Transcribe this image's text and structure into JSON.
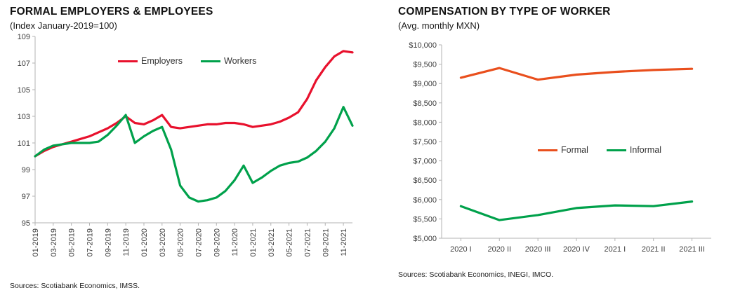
{
  "chart_data": [
    {
      "type": "line",
      "title": "FORMAL EMPLOYERS & EMPLOYEES",
      "subtitle": "(Index January-2019=100)",
      "source": "Sources: Scotiabank Economics, IMSS.",
      "ylim": [
        95,
        109
      ],
      "ytick_step": 2,
      "ytick_format": "plain",
      "grid": false,
      "legend_position": "top-center-inside",
      "x_tick_every": 2,
      "x": [
        "01-2019",
        "02-2019",
        "03-2019",
        "04-2019",
        "05-2019",
        "06-2019",
        "07-2019",
        "08-2019",
        "09-2019",
        "10-2019",
        "11-2019",
        "12-2019",
        "01-2020",
        "02-2020",
        "03-2020",
        "04-2020",
        "05-2020",
        "06-2020",
        "07-2020",
        "08-2020",
        "09-2020",
        "10-2020",
        "11-2020",
        "12-2020",
        "01-2021",
        "02-2021",
        "03-2021",
        "04-2021",
        "05-2021",
        "06-2021",
        "07-2021",
        "08-2021",
        "09-2021",
        "10-2021",
        "11-2021",
        "12-2021"
      ],
      "series": [
        {
          "name": "Employers",
          "color": "#e8112d",
          "values": [
            100.0,
            100.4,
            100.7,
            100.9,
            101.1,
            101.3,
            101.5,
            101.8,
            102.1,
            102.5,
            103.0,
            102.5,
            102.4,
            102.7,
            103.1,
            102.2,
            102.1,
            102.2,
            102.3,
            102.4,
            102.4,
            102.5,
            102.5,
            102.4,
            102.2,
            102.3,
            102.4,
            102.6,
            102.9,
            103.3,
            104.3,
            105.7,
            106.7,
            107.5,
            107.9,
            107.8
          ]
        },
        {
          "name": "Workers",
          "color": "#00a14b",
          "values": [
            100.0,
            100.5,
            100.8,
            100.9,
            101.0,
            101.0,
            101.0,
            101.1,
            101.6,
            102.3,
            103.1,
            101.0,
            101.5,
            101.9,
            102.2,
            100.5,
            97.8,
            96.9,
            96.6,
            96.7,
            96.9,
            97.4,
            98.2,
            99.3,
            98.0,
            98.4,
            98.9,
            99.3,
            99.5,
            99.6,
            99.9,
            100.4,
            101.1,
            102.1,
            103.7,
            102.3
          ]
        }
      ]
    },
    {
      "type": "line",
      "title": "COMPENSATION BY TYPE OF WORKER",
      "subtitle": "(Avg. monthly MXN)",
      "source": "Sources: Scotiabank Economics, INEGI, IMCO.",
      "ylim": [
        5000,
        10000
      ],
      "ytick_step": 500,
      "ytick_format": "currency",
      "grid": false,
      "legend_position": "middle-inside",
      "x_tick_every": 1,
      "categories": [
        "2020 I",
        "2020 II",
        "2020 III",
        "2020 IV",
        "2021 I",
        "2021 II",
        "2021 III"
      ],
      "series": [
        {
          "name": "Formal",
          "color": "#e94f1d",
          "values": [
            9150,
            9400,
            9100,
            9230,
            9300,
            9350,
            9380
          ]
        },
        {
          "name": "Informal",
          "color": "#00a14b",
          "values": [
            5830,
            5470,
            5600,
            5780,
            5850,
            5830,
            5950
          ]
        }
      ]
    }
  ]
}
